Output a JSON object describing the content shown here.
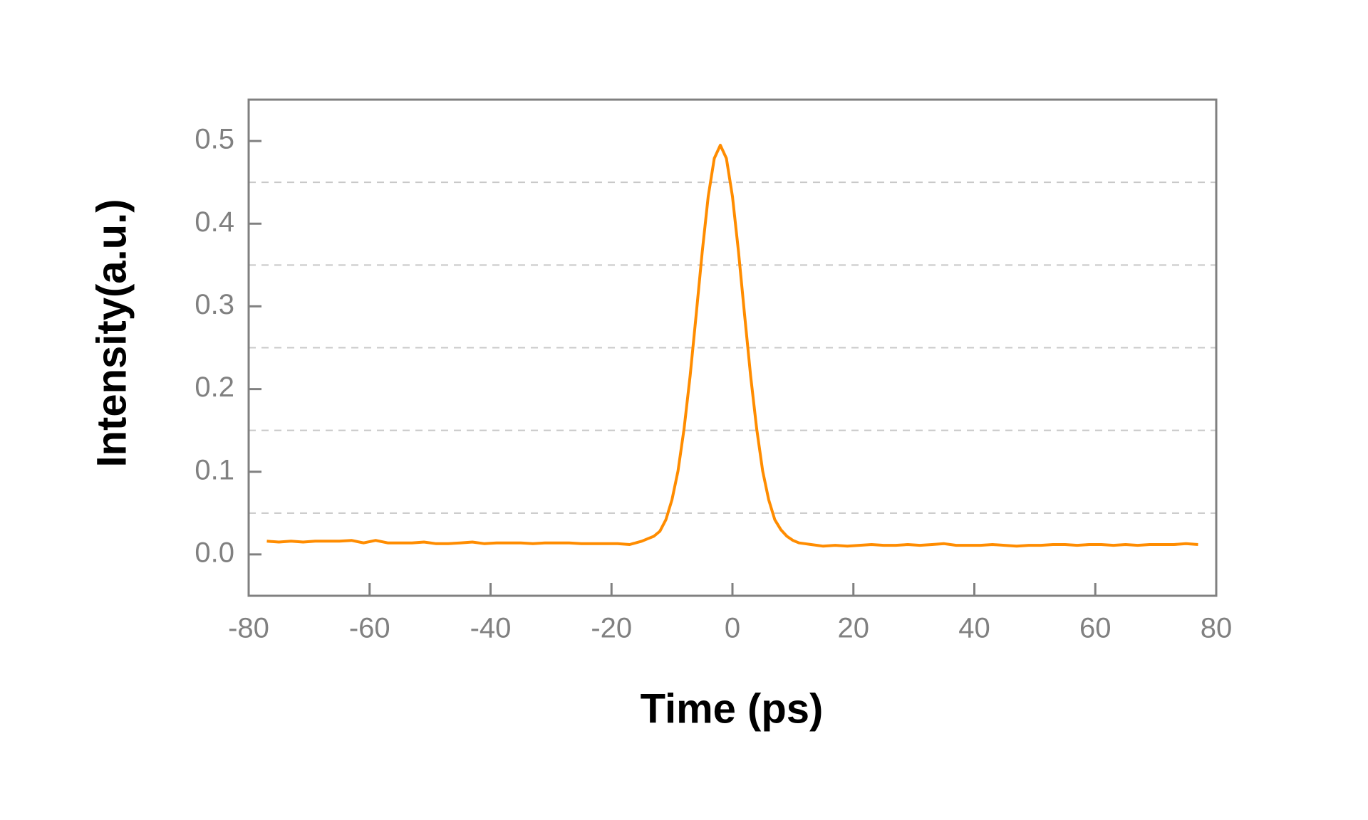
{
  "chart_data": {
    "type": "line",
    "xlabel": "Time (ps)",
    "ylabel": "Intensity(a.u.)",
    "xlim": [
      -80,
      80
    ],
    "ylim": [
      -0.05,
      0.55
    ],
    "xticks": [
      -80,
      -60,
      -40,
      -20,
      0,
      20,
      40,
      60,
      80
    ],
    "yticks": [
      {
        "value": 0,
        "label": "0.0"
      },
      0.1,
      0.2,
      0.3,
      0.4,
      0.5
    ],
    "ygrid": [
      0.05,
      0.15,
      0.25,
      0.35,
      0.45
    ],
    "grid": true,
    "series": [
      {
        "color": "#ff8c00",
        "x": [
          -77,
          -75,
          -73,
          -71,
          -69,
          -67,
          -65,
          -63,
          -61,
          -59,
          -57,
          -55,
          -53,
          -51,
          -49,
          -47,
          -45,
          -43,
          -41,
          -39,
          -37,
          -35,
          -33,
          -31,
          -29,
          -27,
          -25,
          -23,
          -21,
          -19,
          -17,
          -15,
          -14,
          -13,
          -12,
          -11,
          -10,
          -9,
          -8,
          -7,
          -6,
          -5,
          -4,
          -3,
          -2,
          -1,
          0,
          1,
          2,
          3,
          4,
          5,
          6,
          7,
          8,
          9,
          10,
          11,
          12,
          13,
          14,
          15,
          17,
          19,
          21,
          23,
          25,
          27,
          29,
          31,
          33,
          35,
          37,
          39,
          41,
          43,
          45,
          47,
          49,
          51,
          53,
          55,
          57,
          59,
          61,
          63,
          65,
          67,
          69,
          71,
          73,
          75,
          77
        ],
        "values": [
          0.016,
          0.015,
          0.016,
          0.015,
          0.016,
          0.016,
          0.016,
          0.017,
          0.014,
          0.017,
          0.014,
          0.014,
          0.014,
          0.015,
          0.013,
          0.013,
          0.014,
          0.015,
          0.013,
          0.014,
          0.014,
          0.014,
          0.013,
          0.014,
          0.014,
          0.014,
          0.013,
          0.013,
          0.013,
          0.013,
          0.012,
          0.016,
          0.019,
          0.022,
          0.028,
          0.042,
          0.066,
          0.101,
          0.152,
          0.216,
          0.29,
          0.366,
          0.433,
          0.479,
          0.495,
          0.479,
          0.433,
          0.366,
          0.29,
          0.216,
          0.152,
          0.101,
          0.066,
          0.042,
          0.03,
          0.022,
          0.017,
          0.014,
          0.013,
          0.012,
          0.011,
          0.01,
          0.011,
          0.01,
          0.011,
          0.012,
          0.011,
          0.011,
          0.012,
          0.011,
          0.012,
          0.013,
          0.011,
          0.011,
          0.011,
          0.012,
          0.011,
          0.01,
          0.011,
          0.011,
          0.012,
          0.012,
          0.011,
          0.012,
          0.012,
          0.011,
          0.012,
          0.011,
          0.012,
          0.012,
          0.012,
          0.013,
          0.012
        ]
      }
    ]
  }
}
